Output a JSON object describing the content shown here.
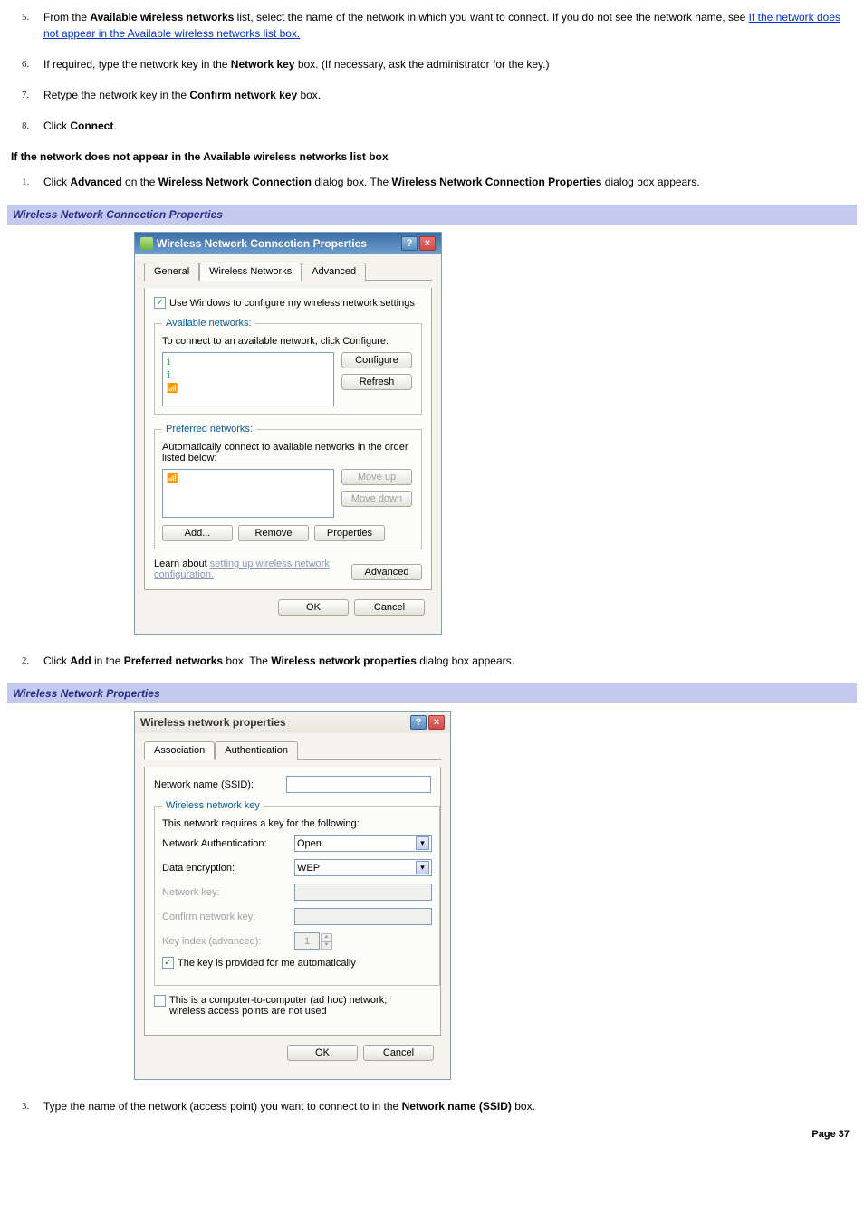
{
  "steps_top": [
    {
      "num": "5.",
      "html_parts": [
        {
          "t": "plain",
          "v": "From the "
        },
        {
          "t": "b",
          "v": "Available wireless networks"
        },
        {
          "t": "plain",
          "v": " list, select the name of the network in which you want to connect. If you do not see the network name, see "
        },
        {
          "t": "a",
          "v": "If the network does not appear in the Available wireless networks list box."
        }
      ]
    },
    {
      "num": "6.",
      "html_parts": [
        {
          "t": "plain",
          "v": "If required, type the network key in the "
        },
        {
          "t": "b",
          "v": "Network key"
        },
        {
          "t": "plain",
          "v": " box. (If necessary, ask the administrator for the key.)"
        }
      ]
    },
    {
      "num": "7.",
      "html_parts": [
        {
          "t": "plain",
          "v": "Retype the network key in the "
        },
        {
          "t": "b",
          "v": "Confirm network key"
        },
        {
          "t": "plain",
          "v": " box."
        }
      ]
    },
    {
      "num": "8.",
      "html_parts": [
        {
          "t": "plain",
          "v": "Click "
        },
        {
          "t": "b",
          "v": "Connect"
        },
        {
          "t": "plain",
          "v": "."
        }
      ]
    }
  ],
  "heading_not_appear": "If the network does not appear in the Available wireless networks list box",
  "steps_section2": [
    {
      "num": "1.",
      "html_parts": [
        {
          "t": "plain",
          "v": "Click "
        },
        {
          "t": "b",
          "v": "Advanced"
        },
        {
          "t": "plain",
          "v": " on the "
        },
        {
          "t": "b",
          "v": "Wireless Network Connection"
        },
        {
          "t": "plain",
          "v": " dialog box. The "
        },
        {
          "t": "b",
          "v": "Wireless Network Connection Properties"
        },
        {
          "t": "plain",
          "v": " dialog box appears."
        }
      ]
    }
  ],
  "caption1": "Wireless Network Connection Properties",
  "dialog1": {
    "title": "Wireless Network Connection Properties",
    "tabs": [
      "General",
      "Wireless Networks",
      "Advanced"
    ],
    "active_tab": 1,
    "use_windows_chk_label": "Use Windows to configure my wireless network settings",
    "available_legend": "Available networks:",
    "available_hint": "To connect to an available network, click Configure.",
    "configure_btn": "Configure",
    "refresh_btn": "Refresh",
    "preferred_legend": "Preferred networks:",
    "preferred_hint": "Automatically connect to available networks in the order listed below:",
    "moveup_btn": "Move up",
    "movedown_btn": "Move down",
    "add_btn": "Add...",
    "remove_btn": "Remove",
    "properties_btn": "Properties",
    "learn_prefix": "Learn about ",
    "learn_link": "setting up wireless network configuration.",
    "advanced_btn": "Advanced",
    "ok_btn": "OK",
    "cancel_btn": "Cancel"
  },
  "steps_section3": [
    {
      "num": "2.",
      "html_parts": [
        {
          "t": "plain",
          "v": "Click "
        },
        {
          "t": "b",
          "v": "Add"
        },
        {
          "t": "plain",
          "v": " in the "
        },
        {
          "t": "b",
          "v": "Preferred networks"
        },
        {
          "t": "plain",
          "v": " box. The "
        },
        {
          "t": "b",
          "v": "Wireless network properties"
        },
        {
          "t": "plain",
          "v": " dialog box appears."
        }
      ]
    }
  ],
  "caption2": "Wireless Network Properties",
  "dialog2": {
    "title": "Wireless network properties",
    "tabs": [
      "Association",
      "Authentication"
    ],
    "active_tab": 0,
    "ssid_label": "Network name (SSID):",
    "wkey_legend": "Wireless network key",
    "wkey_hint": "This network requires a key for the following:",
    "auth_label": "Network Authentication:",
    "auth_value": "Open",
    "enc_label": "Data encryption:",
    "enc_value": "WEP",
    "netkey_label": "Network key:",
    "confirmkey_label": "Confirm network key:",
    "keyindex_label": "Key index (advanced):",
    "keyindex_value": "1",
    "auto_chk_label": "The key is provided for me automatically",
    "adhoc_chk_label": "This is a computer-to-computer (ad hoc) network; wireless access points are not used",
    "ok_btn": "OK",
    "cancel_btn": "Cancel"
  },
  "steps_section4": [
    {
      "num": "3.",
      "html_parts": [
        {
          "t": "plain",
          "v": "Type the name of the network (access point) you want to connect to in the "
        },
        {
          "t": "b",
          "v": "Network name (SSID)"
        },
        {
          "t": "plain",
          "v": " box."
        }
      ]
    }
  ],
  "page_footer": "Page 37"
}
